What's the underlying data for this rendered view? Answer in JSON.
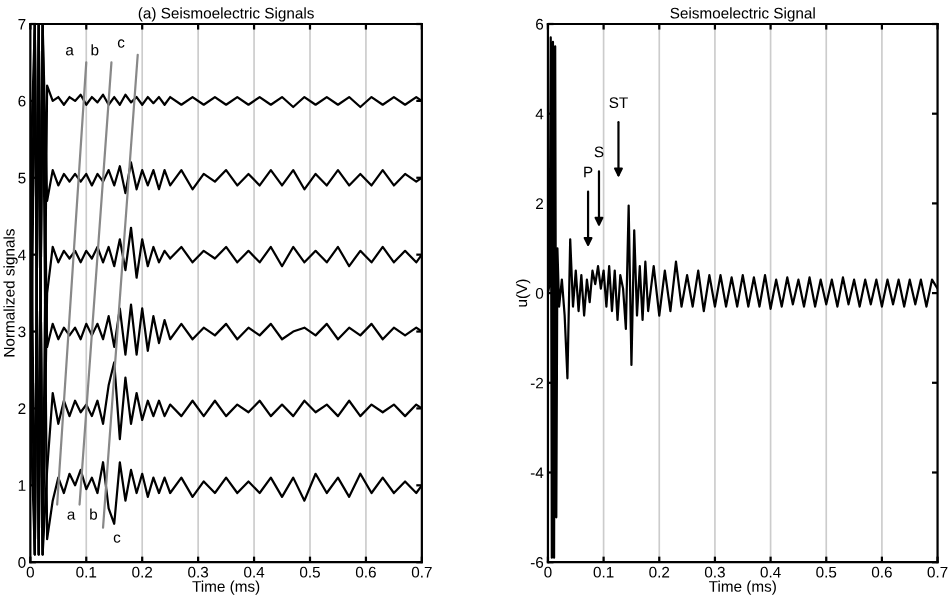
{
  "chart_data": [
    {
      "type": "line",
      "title": "(a) Seismoelectric Signals",
      "xlabel": "Time (ms)",
      "ylabel": "Normalized signals",
      "xlim": [
        0,
        0.7
      ],
      "ylim": [
        0,
        7
      ],
      "xticks": [
        0,
        0.1,
        0.2,
        0.3,
        0.4,
        0.5,
        0.6,
        0.7
      ],
      "yticks": [
        0,
        1,
        2,
        3,
        4,
        5,
        6,
        7
      ],
      "grid": "x",
      "line_style": "solid",
      "x": [
        0,
        0.008,
        0.015,
        0.022,
        0.03,
        0.04,
        0.05,
        0.06,
        0.07,
        0.08,
        0.09,
        0.1,
        0.11,
        0.12,
        0.13,
        0.14,
        0.15,
        0.16,
        0.17,
        0.18,
        0.19,
        0.2,
        0.21,
        0.22,
        0.23,
        0.24,
        0.25,
        0.27,
        0.29,
        0.31,
        0.33,
        0.35,
        0.37,
        0.39,
        0.41,
        0.43,
        0.45,
        0.47,
        0.49,
        0.51,
        0.53,
        0.55,
        0.57,
        0.59,
        0.61,
        0.63,
        0.65,
        0.67,
        0.69,
        0.7
      ],
      "series": [
        {
          "color": "#000000",
          "values": [
            1,
            7,
            0.1,
            7,
            0.3,
            0.8,
            1.1,
            0.9,
            1.15,
            1.0,
            1.2,
            0.95,
            1.1,
            0.9,
            1.3,
            0.7,
            0.5,
            1.3,
            0.8,
            1.2,
            0.9,
            1.15,
            0.85,
            1.1,
            0.9,
            1.1,
            0.9,
            1.1,
            0.85,
            1.05,
            0.9,
            1.1,
            0.9,
            1.05,
            0.9,
            1.1,
            0.85,
            1.1,
            0.8,
            1.15,
            0.9,
            1.1,
            0.85,
            1.15,
            0.9,
            1.1,
            0.9,
            1.05,
            0.9,
            1.0
          ]
        },
        {
          "color": "#000000",
          "values": [
            2,
            0.1,
            7,
            0.1,
            1.2,
            2.2,
            1.8,
            2.1,
            1.9,
            2.1,
            1.95,
            2.05,
            1.9,
            2.1,
            1.8,
            2.3,
            2.6,
            1.6,
            2.4,
            1.8,
            2.2,
            1.85,
            2.1,
            1.9,
            2.1,
            1.9,
            2.05,
            1.9,
            2.1,
            1.9,
            2.1,
            1.9,
            2.05,
            1.95,
            2.1,
            1.9,
            2.05,
            1.9,
            2.1,
            1.95,
            2.05,
            1.9,
            2.1,
            1.9,
            2.05,
            1.95,
            2.05,
            1.9,
            2.05,
            2.0
          ]
        },
        {
          "color": "#000000",
          "values": [
            3,
            7,
            0.1,
            7,
            2.8,
            3.1,
            2.9,
            3.05,
            2.95,
            3.05,
            2.9,
            3.1,
            2.95,
            3.1,
            2.9,
            3.2,
            2.8,
            3.3,
            2.7,
            3.35,
            2.7,
            3.3,
            2.75,
            3.2,
            2.85,
            3.15,
            2.9,
            3.1,
            2.9,
            3.05,
            2.95,
            3.1,
            2.9,
            3.05,
            2.95,
            3.1,
            2.9,
            3.0,
            3.05,
            2.95,
            3.1,
            2.9,
            3.05,
            2.95,
            3.1,
            2.9,
            3.05,
            2.95,
            3.05,
            3.0
          ]
        },
        {
          "color": "#000000",
          "values": [
            4,
            0.1,
            7,
            0.1,
            3.5,
            4.1,
            3.9,
            4.05,
            3.95,
            4.05,
            3.9,
            4.05,
            3.95,
            4.1,
            3.9,
            4.1,
            3.85,
            4.2,
            3.8,
            4.35,
            3.7,
            4.2,
            3.85,
            4.1,
            3.9,
            4.05,
            3.95,
            4.1,
            3.9,
            4.05,
            3.95,
            4.1,
            3.9,
            4.05,
            3.9,
            4.1,
            3.85,
            4.1,
            3.9,
            4.05,
            3.9,
            4.1,
            3.85,
            4.05,
            3.9,
            4.1,
            3.9,
            4.05,
            3.9,
            4.0
          ]
        },
        {
          "color": "#000000",
          "values": [
            5,
            7,
            0.1,
            7,
            4.7,
            5.1,
            4.9,
            5.05,
            4.95,
            5.05,
            4.95,
            5.05,
            4.9,
            5.05,
            4.95,
            5.1,
            4.9,
            5.15,
            4.8,
            5.2,
            4.85,
            5.1,
            4.9,
            5.1,
            4.85,
            5.1,
            4.9,
            5.1,
            4.85,
            5.05,
            4.95,
            5.1,
            4.9,
            5.05,
            4.9,
            5.1,
            4.9,
            5.1,
            4.85,
            5.05,
            4.9,
            5.1,
            4.9,
            5.05,
            4.9,
            5.1,
            4.9,
            5.05,
            4.95,
            5.0
          ]
        },
        {
          "color": "#000000",
          "values": [
            6,
            0.1,
            7,
            0.1,
            6.2,
            6.0,
            6.05,
            5.95,
            6.05,
            6.0,
            6.08,
            5.95,
            6.05,
            5.98,
            6.08,
            5.95,
            6.05,
            5.95,
            6.08,
            5.98,
            6.05,
            5.95,
            6.05,
            5.97,
            6.05,
            5.95,
            6.05,
            5.95,
            6.05,
            5.95,
            6.05,
            5.95,
            6.05,
            5.95,
            6.05,
            5.95,
            6.05,
            5.92,
            6.05,
            5.95,
            6.05,
            5.95,
            6.05,
            5.92,
            6.05,
            5.95,
            6.05,
            5.95,
            6.05,
            6.0
          ]
        },
        {
          "color": "#888888",
          "x": [
            0.048,
            0.1
          ],
          "values": [
            0.75,
            6.5
          ]
        },
        {
          "color": "#888888",
          "x": [
            0.088,
            0.145
          ],
          "values": [
            0.75,
            6.5
          ]
        },
        {
          "color": "#888888",
          "x": [
            0.13,
            0.192
          ],
          "values": [
            0.45,
            6.6
          ]
        }
      ],
      "annotations": [
        "a",
        "b",
        "c",
        "a",
        "b",
        "c"
      ]
    },
    {
      "type": "line",
      "title": "Seismoelectric Signal",
      "xlabel": "Time (ms)",
      "ylabel": "u(V)",
      "xlim": [
        0,
        0.7
      ],
      "ylim": [
        -6,
        6
      ],
      "xticks": [
        0,
        0.1,
        0.2,
        0.3,
        0.4,
        0.5,
        0.6,
        0.7
      ],
      "yticks": [
        -6,
        -4,
        -2,
        0,
        2,
        4,
        6
      ],
      "grid": "x",
      "line_style": "solid",
      "x": [
        0,
        0.003,
        0.005,
        0.007,
        0.009,
        0.011,
        0.013,
        0.015,
        0.017,
        0.02,
        0.025,
        0.03,
        0.035,
        0.04,
        0.045,
        0.05,
        0.055,
        0.06,
        0.065,
        0.07,
        0.075,
        0.08,
        0.085,
        0.09,
        0.095,
        0.1,
        0.105,
        0.11,
        0.115,
        0.12,
        0.125,
        0.13,
        0.135,
        0.14,
        0.145,
        0.15,
        0.155,
        0.16,
        0.165,
        0.17,
        0.175,
        0.18,
        0.19,
        0.2,
        0.21,
        0.22,
        0.23,
        0.24,
        0.25,
        0.26,
        0.27,
        0.28,
        0.29,
        0.3,
        0.31,
        0.32,
        0.33,
        0.34,
        0.35,
        0.36,
        0.37,
        0.38,
        0.39,
        0.4,
        0.41,
        0.42,
        0.43,
        0.44,
        0.45,
        0.46,
        0.47,
        0.48,
        0.49,
        0.5,
        0.51,
        0.52,
        0.53,
        0.54,
        0.55,
        0.56,
        0.57,
        0.58,
        0.59,
        0.6,
        0.61,
        0.62,
        0.63,
        0.64,
        0.65,
        0.66,
        0.67,
        0.68,
        0.69,
        0.7
      ],
      "series": [
        {
          "color": "#000000",
          "values": [
            0,
            0.2,
            5.7,
            -5.9,
            5.6,
            -5.9,
            5.5,
            -5,
            1,
            -0.3,
            0.3,
            -0.5,
            -1.9,
            1.2,
            -0.3,
            0.5,
            -0.4,
            0.4,
            -0.5,
            0.3,
            -0.2,
            0.5,
            0.2,
            0.6,
            0.1,
            0.5,
            -0.3,
            0.6,
            -0.4,
            0.5,
            -0.6,
            0.4,
            0.1,
            -0.8,
            1.95,
            -1.6,
            1.4,
            -0.5,
            0.6,
            -0.6,
            0.7,
            -0.4,
            0.6,
            -0.5,
            0.5,
            -0.4,
            0.7,
            -0.3,
            0.4,
            -0.3,
            0.5,
            -0.4,
            0.4,
            -0.3,
            0.4,
            -0.3,
            0.35,
            -0.3,
            0.4,
            -0.3,
            0.35,
            -0.3,
            0.4,
            -0.35,
            0.3,
            -0.3,
            0.35,
            -0.25,
            0.3,
            -0.3,
            0.35,
            -0.3,
            0.3,
            -0.25,
            0.3,
            -0.3,
            0.35,
            -0.25,
            0.3,
            -0.3,
            0.3,
            -0.25,
            0.3,
            -0.3,
            0.3,
            -0.25,
            0.3,
            -0.3,
            0.3,
            -0.25,
            0.3,
            -0.3,
            0.3,
            0.1
          ]
        }
      ],
      "annotations": [
        "P",
        "S",
        "ST"
      ]
    }
  ]
}
